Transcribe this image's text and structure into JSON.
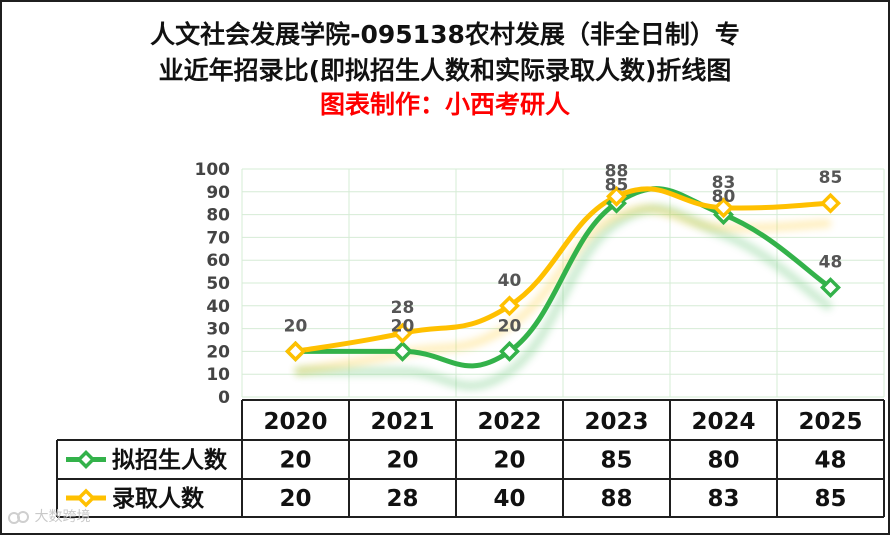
{
  "title": {
    "line1": "人文社会发展学院-095138农村发展（非全日制）专",
    "line2": "业近年招录比(即拟招生人数和实际录取人数)折线图",
    "credit": "图表制作：小西考研人"
  },
  "watermark": "大数跨境",
  "colors": {
    "series1": "#33b24a",
    "series2": "#ffc000",
    "credit": "#ff0000",
    "grid": "#d6ecd6"
  },
  "chart_data": {
    "type": "line",
    "categories": [
      "2020",
      "2021",
      "2022",
      "2023",
      "2024",
      "2025"
    ],
    "series": [
      {
        "name": "拟招生人数",
        "values": [
          20,
          20,
          20,
          85,
          80,
          48
        ]
      },
      {
        "name": "录取人数",
        "values": [
          20,
          28,
          40,
          88,
          83,
          85
        ]
      }
    ],
    "ylim": [
      0,
      100
    ],
    "yticks": [
      "0",
      "10",
      "20",
      "30",
      "40",
      "50",
      "60",
      "70",
      "80",
      "90",
      "100"
    ],
    "grid": true,
    "legend": "data-table"
  }
}
